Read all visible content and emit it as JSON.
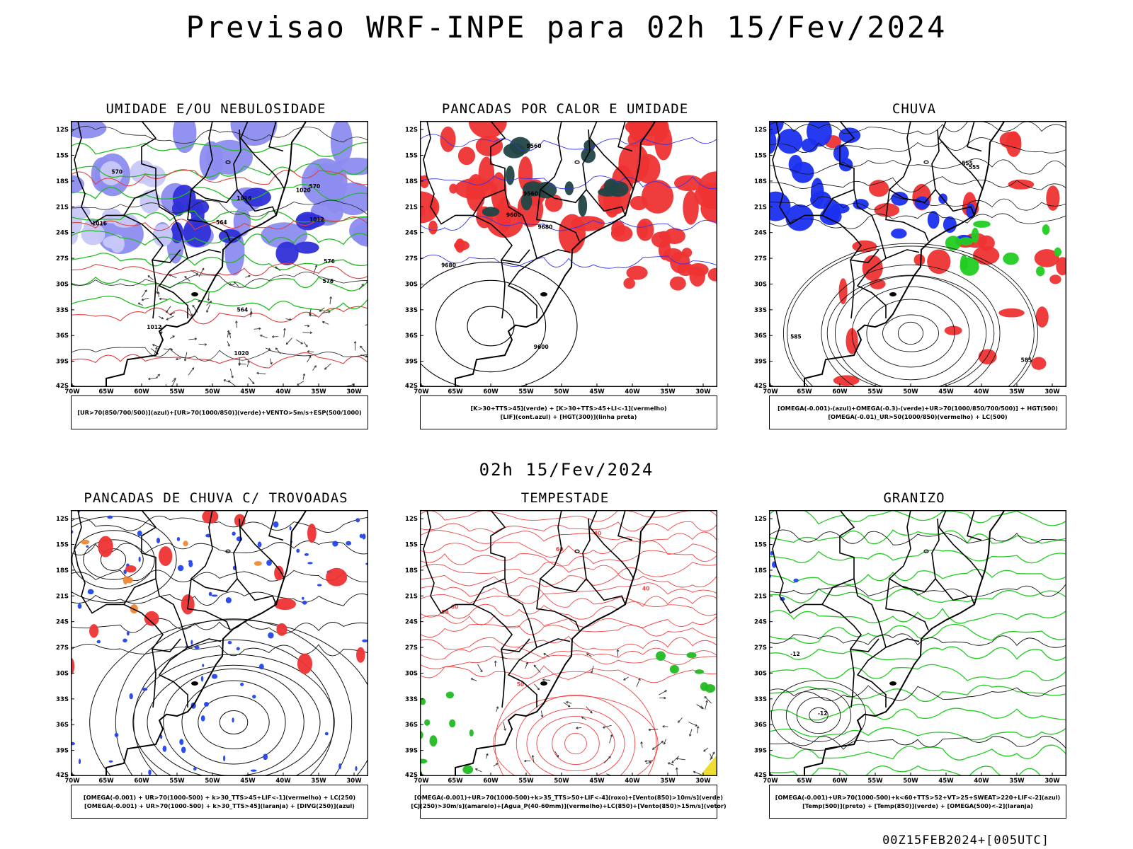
{
  "header": {
    "title": "Previsao WRF-INPE  para 02h 15/Fev/2024"
  },
  "middle_label": "02h 15/Fev/2024",
  "footer": "00Z15FEB2024+[005UTC]",
  "axes": {
    "lat_labels": [
      "12S",
      "15S",
      "18S",
      "21S",
      "24S",
      "27S",
      "30S",
      "33S",
      "36S",
      "39S",
      "42S"
    ],
    "lon_labels": [
      "70W",
      "65W",
      "60W",
      "55W",
      "50W",
      "45W",
      "40W",
      "35W",
      "30W"
    ]
  },
  "panels": [
    {
      "title": "UMIDADE E/OU NEBULOSIDADE",
      "legend": [
        "[UR>70(850/700/500)](azul)+[UR>70(1000/850)](verde)+VENTO>5m/s+ESP(500/1000)"
      ],
      "labels": [
        "1016",
        "1020",
        "1012",
        "576",
        "570",
        "564"
      ]
    },
    {
      "title": "PANCADAS POR CALOR E UMIDADE",
      "legend": [
        "[K>30+TTS>45](verde) + [K>30+TTS>45+LI<-1](vermelho)",
        "[LIF](cont.azul) + [HGT(300)](linha preta)"
      ],
      "labels": [
        "9680",
        "9600",
        "9560"
      ]
    },
    {
      "title": "CHUVA",
      "legend": [
        "[OMEGA(-0.001)-(azul)+OMEGA(-0.3)-(verde)+UR>70(1000/850/700/500)] + HGT(500)",
        "[OMEGA(-0.01)_UR>50(1000/850)(vermelho) + LC(500)"
      ],
      "labels": [
        "585",
        "555"
      ]
    },
    {
      "title": "PANCADAS DE CHUVA C/ TROVOADAS",
      "legend": [
        "[OMEGA(-0.001) + UR>70(1000-500) + k>30_TTS>45+LIF<-1](vermelho) + LC(250)",
        "[OMEGA(-0.001) + UR>70(1000-500) + k>30_TTS>45](laranja) + [DIVG(250)](azul)"
      ],
      "labels": []
    },
    {
      "title": "TEMPESTADE",
      "legend": [
        "[OMEGA(-0.001)+UR>70(1000-500)+k>35_TTS>50+LIF<-4](roxo)+[Vento(850)>10m/s](verde)",
        "[CJ(250)>30m/s](amarelo)+[Agua_P(40-60mm)](vermelho)+LC(850)+[Vento(850)>15m/s](vetor)"
      ],
      "labels": [
        "50",
        "40",
        "60"
      ]
    },
    {
      "title": "GRANIZO",
      "legend": [
        "[OMEGA(-0.001)+UR>70(1000-500)+k<60+TTS>52+VT>25+SWEAT>220+LIF<-2](azul)",
        "[Temp(500)](preto) + [Temp(850)](verde) + [OMEGA(500)<-2](laranja)"
      ],
      "labels": [
        "-12"
      ]
    }
  ]
}
